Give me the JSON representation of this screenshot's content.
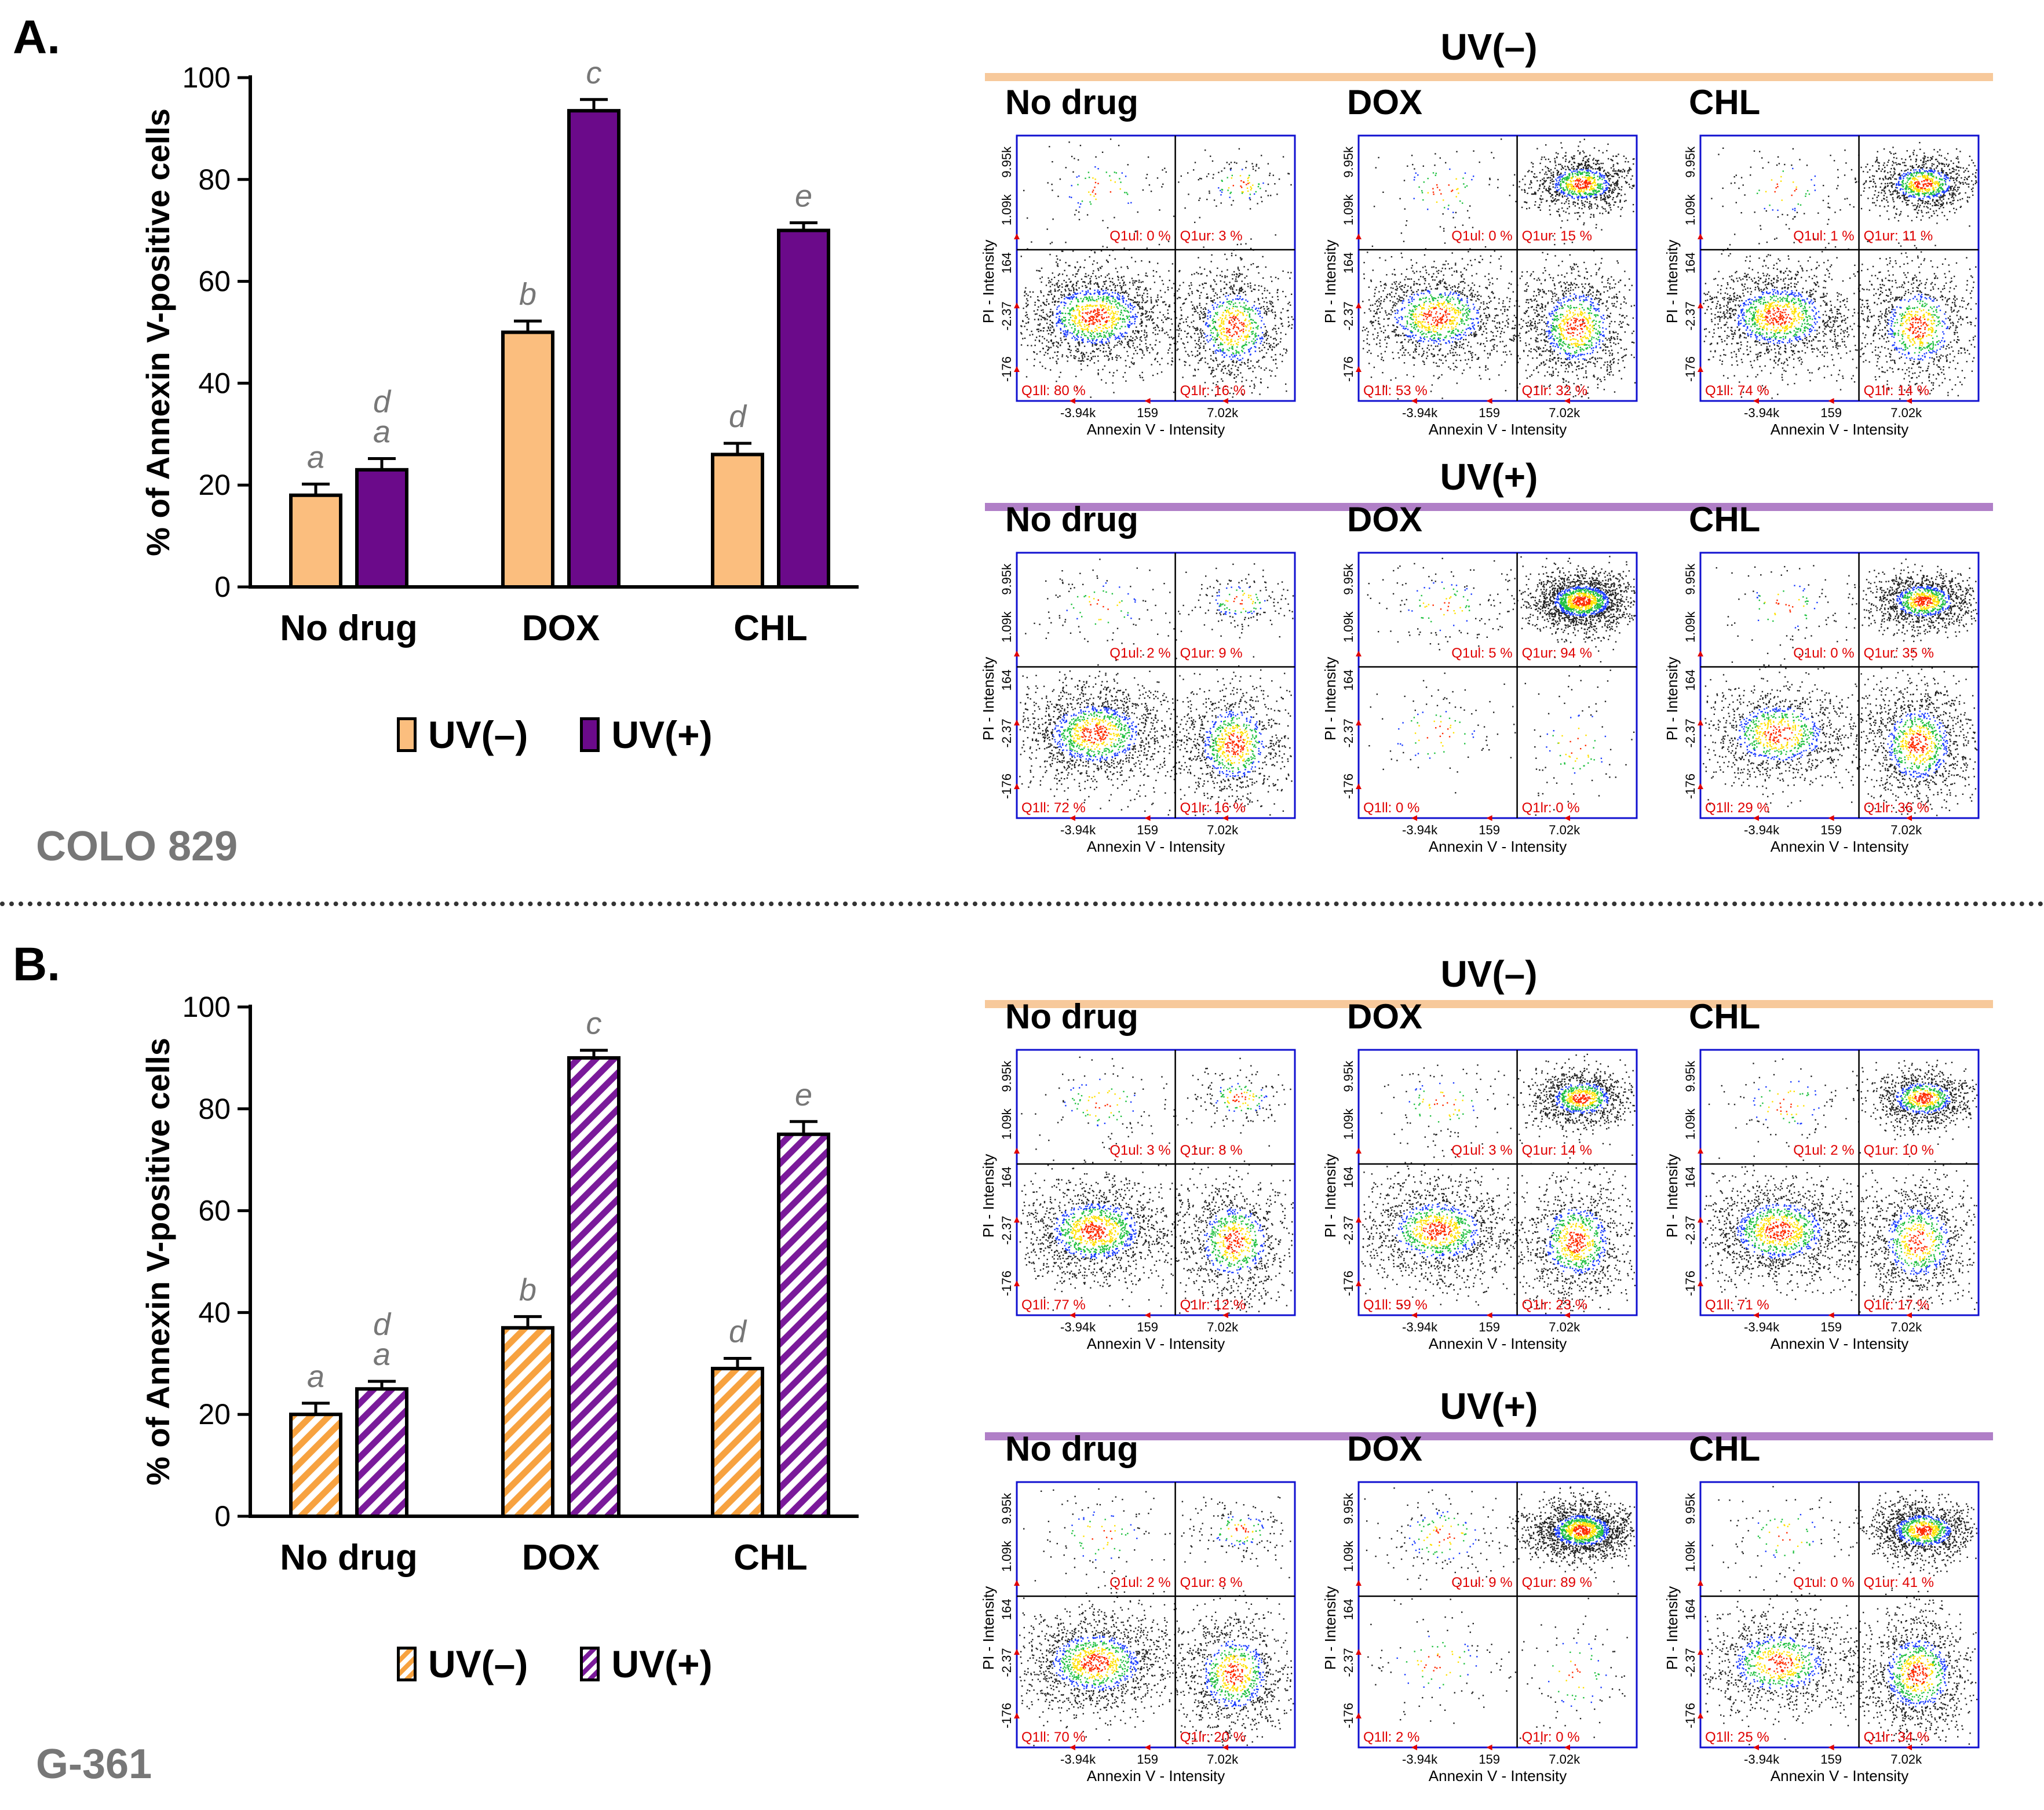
{
  "panels": [
    {
      "id": "A",
      "letter": "A.",
      "cell_line": "COLO 829",
      "legend": {
        "uv_minus": "UV(–)",
        "uv_plus": "UV(+)"
      },
      "chart_data": {
        "type": "bar",
        "ylabel": "% of Annexin V-positive cells",
        "ylim": [
          0,
          100
        ],
        "yticks": [
          "0",
          "20",
          "40",
          "60",
          "80",
          "100"
        ],
        "categories": [
          "No drug",
          "DOX",
          "CHL"
        ],
        "pattern": "solid",
        "series": [
          {
            "name": "UV(–)",
            "color": "#FBBE7E",
            "values": [
              18,
              50,
              26
            ],
            "errors": [
              2.2,
              2.2,
              2.2
            ],
            "letters": [
              "a",
              "b",
              "d"
            ]
          },
          {
            "name": "UV(+)",
            "color": "#6B0A8A",
            "values": [
              23,
              93.5,
              70
            ],
            "errors": [
              2.2,
              2.2,
              1.5
            ],
            "letters": [
              "d a",
              "c",
              "e"
            ]
          }
        ]
      },
      "flow": {
        "uv_minus": {
          "title": "UV(–)",
          "line_color": "#F7C99B",
          "plots": [
            {
              "label": "No drug",
              "ul": "Q1ul: 0 %",
              "ur": "Q1ur: 3 %",
              "ll": "Q1ll: 80 %",
              "lr": "Q1lr: 16 %"
            },
            {
              "label": "DOX",
              "ul": "Q1ul: 0 %",
              "ur": "Q1ur: 15 %",
              "ll": "Q1ll: 53 %",
              "lr": "Q1lr: 32 %"
            },
            {
              "label": "CHL",
              "ul": "Q1ul: 1 %",
              "ur": "Q1ur: 11 %",
              "ll": "Q1ll: 74 %",
              "lr": "Q1lr: 14 %"
            }
          ]
        },
        "uv_plus": {
          "title": "UV(+)",
          "line_color": "#B07FC7",
          "plots": [
            {
              "label": "No drug",
              "ul": "Q1ul: 2 %",
              "ur": "Q1ur: 9 %",
              "ll": "Q1ll: 72 %",
              "lr": "Q1lr: 16 %"
            },
            {
              "label": "DOX",
              "ul": "Q1ul: 5 %",
              "ur": "Q1ur: 94 %",
              "ll": "Q1ll: 0 %",
              "lr": "Q1lr: 0 %"
            },
            {
              "label": "CHL",
              "ul": "Q1ul: 0 %",
              "ur": "Q1ur: 35 %",
              "ll": "Q1ll: 29 %",
              "lr": "Q1lr: 36 %"
            }
          ]
        }
      }
    },
    {
      "id": "B",
      "letter": "B.",
      "cell_line": "G-361",
      "legend": {
        "uv_minus": "UV(–)",
        "uv_plus": "UV(+)"
      },
      "chart_data": {
        "type": "bar",
        "ylabel": "% of Annexin V-positive cells",
        "ylim": [
          0,
          100
        ],
        "yticks": [
          "0",
          "20",
          "40",
          "60",
          "80",
          "100"
        ],
        "categories": [
          "No drug",
          "DOX",
          "CHL"
        ],
        "pattern": "hatched",
        "series": [
          {
            "name": "UV(–)",
            "color": "#F7A240",
            "values": [
              20,
              37,
              29
            ],
            "errors": [
              2.2,
              2.2,
              2.0
            ],
            "letters": [
              "a",
              "b",
              "d"
            ]
          },
          {
            "name": "UV(+)",
            "color": "#7A1A9A",
            "values": [
              25,
              90,
              75
            ],
            "errors": [
              1.5,
              1.5,
              2.5
            ],
            "letters": [
              "d a",
              "c",
              "e"
            ]
          }
        ]
      },
      "flow": {
        "uv_minus": {
          "title": "UV(–)",
          "line_color": "#F7C99B",
          "plots": [
            {
              "label": "No drug",
              "ul": "Q1ul: 3 %",
              "ur": "Q1ur: 8 %",
              "ll": "Q1ll: 77 %",
              "lr": "Q1lr: 12 %"
            },
            {
              "label": "DOX",
              "ul": "Q1ul: 3 %",
              "ur": "Q1ur: 14 %",
              "ll": "Q1ll: 59 %",
              "lr": "Q1lr: 23 %"
            },
            {
              "label": "CHL",
              "ul": "Q1ul: 2 %",
              "ur": "Q1ur: 10 %",
              "ll": "Q1ll: 71 %",
              "lr": "Q1lr: 17 %"
            }
          ]
        },
        "uv_plus": {
          "title": "UV(+)",
          "line_color": "#B07FC7",
          "plots": [
            {
              "label": "No drug",
              "ul": "Q1ul: 2 %",
              "ur": "Q1ur: 8 %",
              "ll": "Q1ll: 70 %",
              "lr": "Q1lr: 20 %"
            },
            {
              "label": "DOX",
              "ul": "Q1ul: 9 %",
              "ur": "Q1ur: 89 %",
              "ll": "Q1ll: 2 %",
              "lr": "Q1lr: 0 %"
            },
            {
              "label": "CHL",
              "ul": "Q1ul: 0 %",
              "ur": "Q1ur: 41 %",
              "ll": "Q1ll: 25 %",
              "lr": "Q1lr: 34 %"
            }
          ]
        }
      }
    }
  ],
  "flow_axes": {
    "x_title": "Annexin V - Intensity",
    "y_title": "PI - Intensity",
    "x_ticks": [
      "-3.94k",
      "159",
      "7.02k"
    ],
    "y_ticks": [
      "9.95k",
      "1.09k",
      "164",
      "-2.37",
      "-176"
    ],
    "frame_color": "#1010D0"
  }
}
